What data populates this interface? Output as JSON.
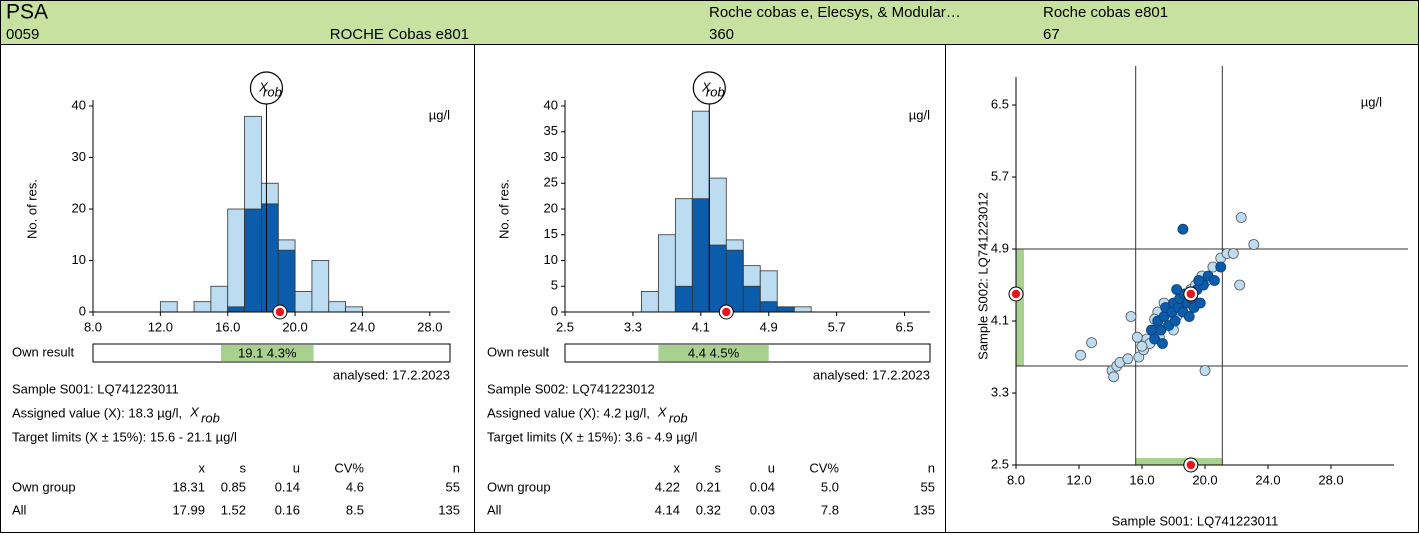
{
  "header": {
    "analyte": "PSA",
    "code": "0059",
    "instrument_code": "ROCHE Cobas e801",
    "method_group": "Roche cobas e,  Elecsys, & Modular…",
    "n_method": "360",
    "instrument": "Roche cobas e801",
    "n_instrument": "67"
  },
  "chart_data": [
    {
      "type": "histogram",
      "y_label": "No. of res.",
      "unit": "µg/l",
      "bins": [
        12,
        13,
        14,
        15,
        16,
        17,
        18,
        19,
        20,
        21,
        22,
        23,
        24
      ],
      "series": [
        {
          "color": "#bcdcf2",
          "values": [
            2,
            0,
            2,
            5,
            20,
            38,
            25,
            14,
            4,
            10,
            2,
            1
          ]
        },
        {
          "color": "#0b5cab",
          "values": [
            0,
            0,
            0,
            0,
            1,
            20,
            21,
            12,
            0,
            0,
            0,
            0
          ]
        }
      ],
      "xlim": [
        8,
        29.2
      ],
      "ylim": [
        0,
        40
      ],
      "xticks": [
        {
          "value": 8,
          "label": "8.0"
        },
        {
          "value": 12,
          "label": "12.0"
        },
        {
          "value": 16,
          "label": "16.0"
        },
        {
          "value": 20,
          "label": "20.0"
        },
        {
          "value": 24,
          "label": "24.0"
        },
        {
          "value": 28,
          "label": "28.0"
        }
      ],
      "yticks": [
        0,
        10,
        20,
        30,
        40
      ],
      "assigned_value": 18.3,
      "marker_label": "X",
      "marker_sub": "rob",
      "own_result": 19.1,
      "own_result_text": "19.1  4.3%",
      "target_limits": [
        15.6,
        21.1
      ]
    },
    {
      "type": "histogram",
      "y_label": "No. of res.",
      "unit": "µg/l",
      "bins": [
        3.4,
        3.6,
        3.8,
        4.0,
        4.2,
        4.4,
        4.6,
        4.8,
        5.0,
        5.2,
        5.4
      ],
      "series": [
        {
          "color": "#bcdcf2",
          "values": [
            4,
            15,
            22,
            39,
            26,
            14,
            9,
            8,
            1,
            1
          ]
        },
        {
          "color": "#0b5cab",
          "values": [
            0,
            0,
            5,
            22,
            13,
            12,
            5,
            2,
            1,
            0
          ]
        }
      ],
      "xlim": [
        2.5,
        6.8
      ],
      "ylim": [
        0,
        40
      ],
      "xticks": [
        2.5,
        3.3,
        4.1,
        4.9,
        5.7,
        6.5
      ],
      "yticks": [
        0,
        5,
        10,
        15,
        20,
        25,
        30,
        35,
        40
      ],
      "assigned_value": 4.2,
      "marker_label": "X",
      "marker_sub": "rob",
      "own_result": 4.4,
      "own_result_text": "4.4  4.5%",
      "target_limits": [
        3.6,
        4.9
      ]
    },
    {
      "type": "scatter",
      "x_label": "Sample S001: LQ741223011",
      "y_label": "Sample S002: LQ741223012",
      "unit": "µg/l",
      "series": [
        {
          "color": "#bcdcf2",
          "x": [
            12.1,
            12.8,
            14.1,
            14.4,
            14.6,
            15.1,
            15.3,
            14.2,
            15.8,
            16.1,
            16.3,
            16.5,
            16.7,
            16.9,
            17.0,
            17.2,
            17.4,
            17.6,
            17.8,
            18.0,
            18.2,
            18.5,
            18.8,
            19.1,
            19.4,
            19.8,
            20.1,
            20.5,
            21.0,
            21.4,
            21.8,
            22.3,
            23.1,
            22.2,
            20.0,
            16.0,
            17.1,
            18.3,
            16.8,
            15.7
          ],
          "y": [
            3.72,
            3.86,
            3.55,
            3.6,
            3.64,
            3.68,
            4.15,
            3.48,
            3.7,
            3.78,
            3.9,
            3.85,
            4.0,
            3.95,
            4.2,
            4.05,
            4.3,
            4.1,
            4.25,
            4.0,
            4.15,
            4.35,
            4.3,
            4.45,
            4.5,
            4.6,
            4.55,
            4.7,
            4.8,
            4.85,
            4.85,
            5.25,
            4.95,
            4.5,
            3.55,
            3.82,
            3.92,
            4.22,
            4.12,
            3.92
          ]
        },
        {
          "color": "#0b5cab",
          "x": [
            16.6,
            16.8,
            17.0,
            17.2,
            17.4,
            17.5,
            17.7,
            17.9,
            18.0,
            18.1,
            18.3,
            18.4,
            18.6,
            18.7,
            18.9,
            19.0,
            19.2,
            19.3,
            19.5,
            19.7,
            19.9,
            20.2,
            20.6,
            21.0,
            18.6,
            17.3,
            18.2,
            19.6
          ],
          "y": [
            4.0,
            3.9,
            4.1,
            4.0,
            4.15,
            4.25,
            4.05,
            4.2,
            4.3,
            4.1,
            4.25,
            4.35,
            4.2,
            4.4,
            4.3,
            4.15,
            4.35,
            4.25,
            4.45,
            4.3,
            4.5,
            4.6,
            4.55,
            4.7,
            5.12,
            3.85,
            4.45,
            4.55
          ]
        }
      ],
      "own_result": {
        "x": 19.1,
        "y": 4.4
      },
      "target_x": [
        15.6,
        21.1
      ],
      "target_y": [
        3.6,
        4.9
      ],
      "xlim": [
        8,
        32
      ],
      "ylim": [
        2.5,
        6.7
      ],
      "xticks": [
        {
          "value": 8,
          "label": "8.0"
        },
        {
          "value": 12,
          "label": "12.0"
        },
        {
          "value": 16,
          "label": "16.0"
        },
        {
          "value": 20,
          "label": "20.0"
        },
        {
          "value": 24,
          "label": "24.0"
        },
        {
          "value": 28,
          "label": "28.0"
        }
      ],
      "yticks": [
        2.5,
        3.3,
        4.1,
        4.9,
        5.7,
        6.5
      ]
    }
  ],
  "panels": [
    {
      "own_result_caption": "Own result",
      "analysed": "analysed: 17.2.2023",
      "sample": "Sample S001: LQ741223011",
      "assigned": "Assigned value (X): 18.3 µg/l,",
      "target": "Target limits (X ± 15%): 15.6 - 21.1 µg/l",
      "columns": [
        "x",
        "s",
        "u",
        "CV%",
        "n"
      ],
      "rows": [
        [
          "Own group",
          "18.31",
          "0.85",
          "0.14",
          "4.6",
          "55"
        ],
        [
          "All",
          "17.99",
          "1.52",
          "0.16",
          "8.5",
          "135"
        ]
      ]
    },
    {
      "own_result_caption": "Own result",
      "analysed": "analysed: 17.2.2023",
      "sample": "Sample S002: LQ741223012",
      "assigned": "Assigned value (X): 4.2 µg/l,",
      "target": "Target limits (X ± 15%): 3.6 - 4.9 µg/l",
      "columns": [
        "x",
        "s",
        "u",
        "CV%",
        "n"
      ],
      "rows": [
        [
          "Own group",
          "4.22",
          "0.21",
          "0.04",
          "5.0",
          "55"
        ],
        [
          "All",
          "4.14",
          "0.32",
          "0.03",
          "7.8",
          "135"
        ]
      ]
    }
  ]
}
